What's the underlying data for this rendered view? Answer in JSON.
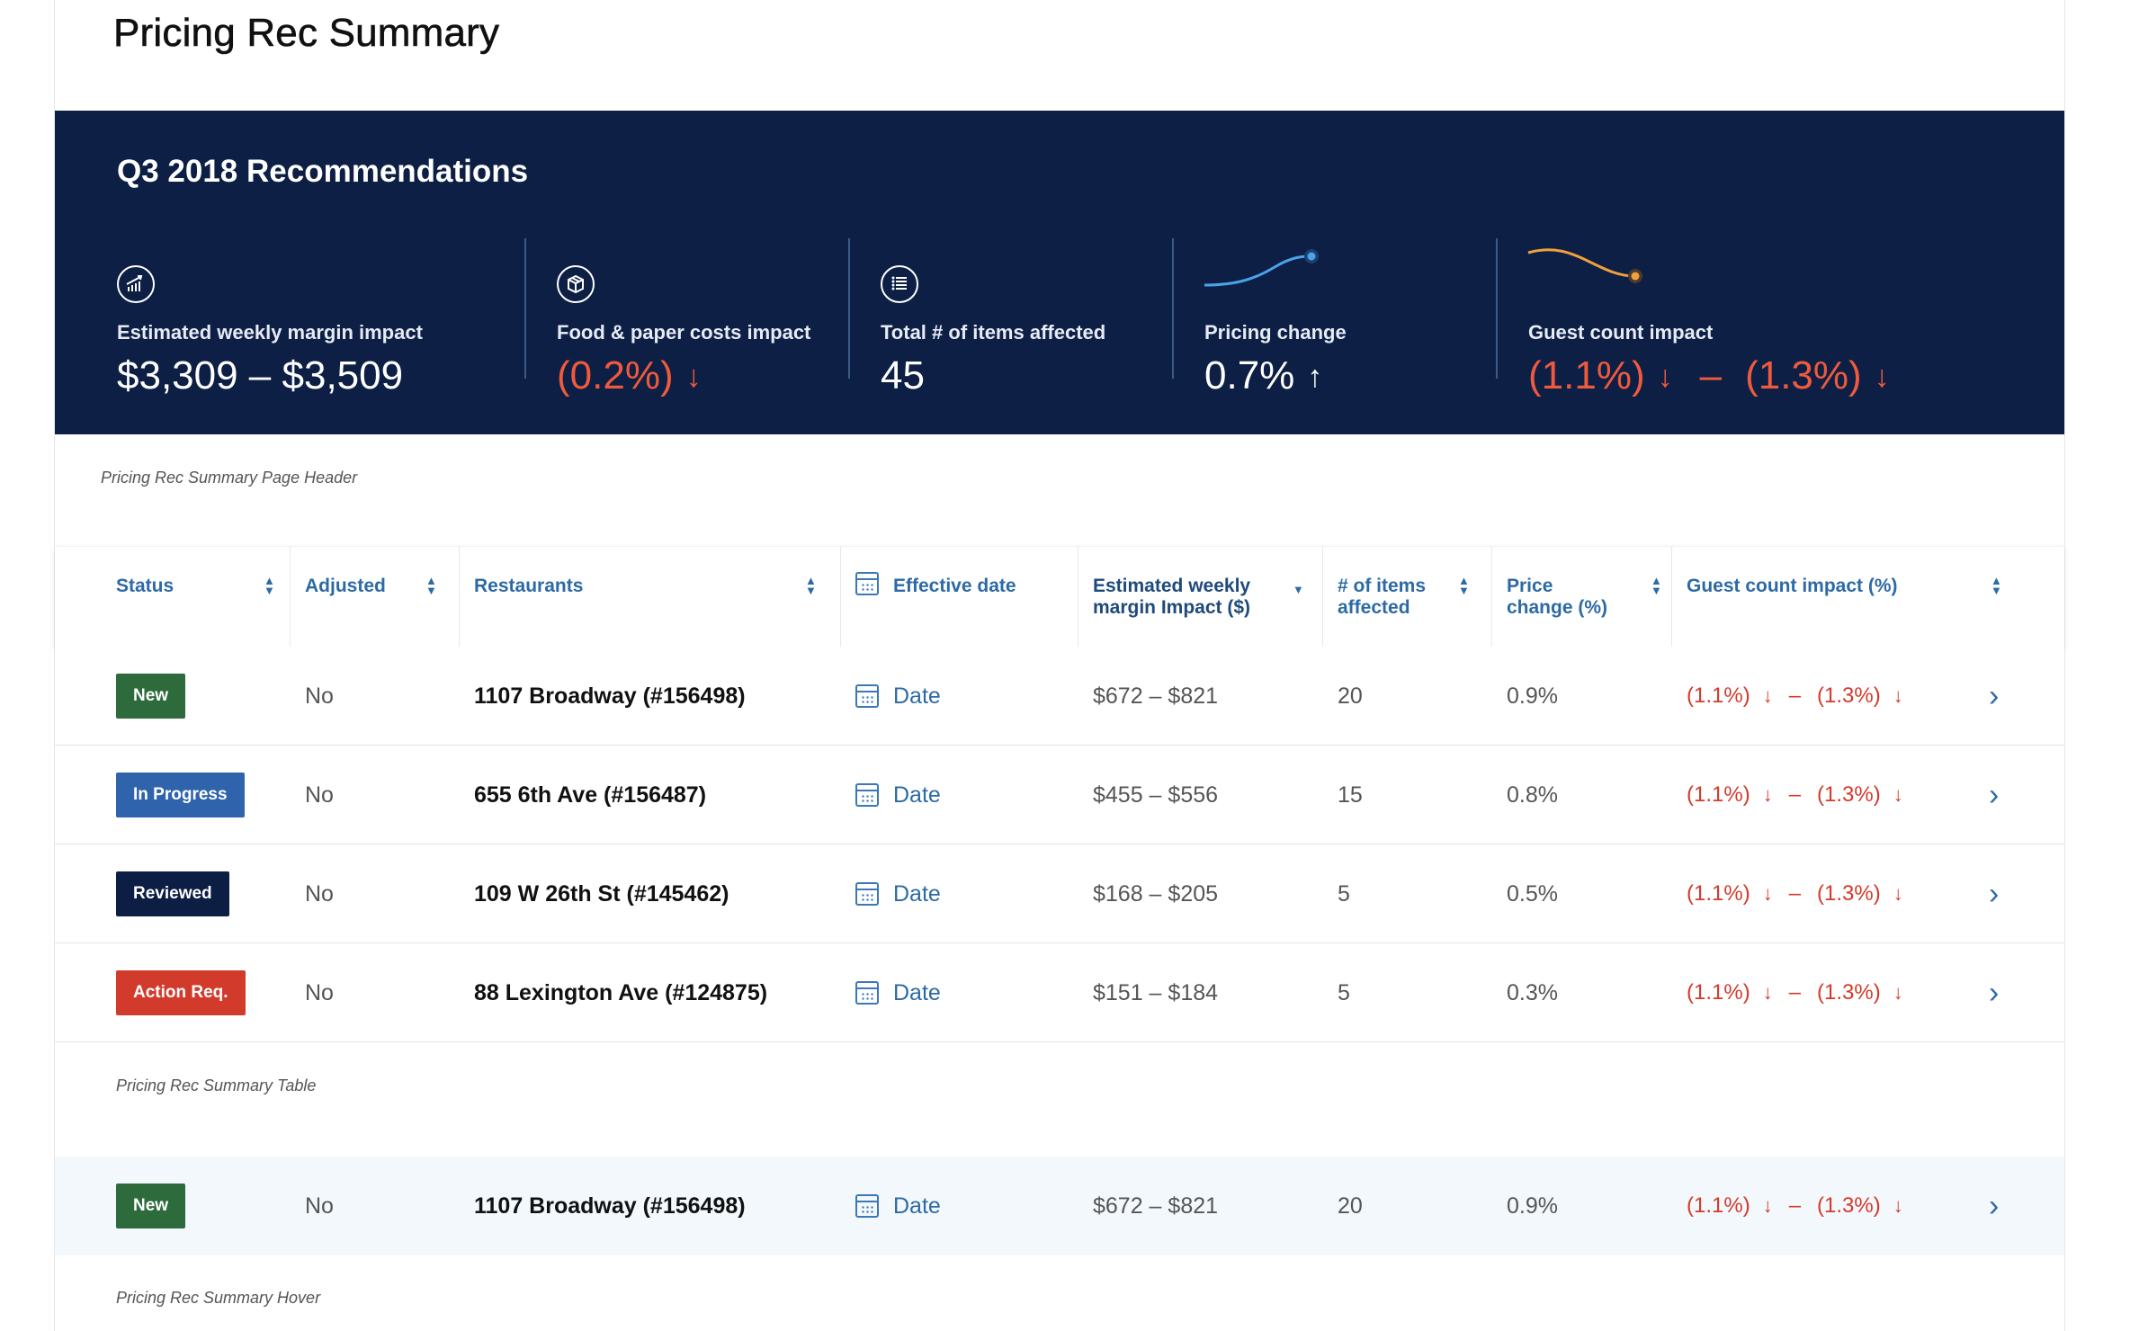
{
  "page": {
    "title": "Pricing Rec Summary"
  },
  "hero": {
    "title": "Q3 2018 Recommendations",
    "metrics": [
      {
        "label": "Estimated weekly margin impact",
        "value": "$3,309 – $3,509",
        "icon": "chart-growth-icon"
      },
      {
        "label": "Food & paper costs impact",
        "value": "(0.2%)",
        "arrow": "↓",
        "icon": "box-icon"
      },
      {
        "label": "Total # of items affected",
        "value": "45",
        "icon": "list-icon"
      },
      {
        "label": "Pricing change",
        "value": "0.7%",
        "arrow": "↑",
        "icon": "trend-up-sparkline"
      },
      {
        "label": "Guest count impact",
        "value_low": "(1.1%)",
        "value_high": "(1.3%)",
        "arrow": "↓",
        "dash": "–",
        "icon": "trend-down-sparkline"
      }
    ],
    "colors": {
      "background": "#0d1f45",
      "negative": "#f05a3c",
      "sparkline_up": "#4aa3e8",
      "sparkline_down": "#f0a03c"
    }
  },
  "captions": {
    "header": "Pricing Rec Summary Page Header",
    "table": "Pricing Rec Summary Table",
    "hover": "Pricing Rec Summary Hover"
  },
  "table": {
    "columns": [
      "Status",
      "Adjusted",
      "Restaurants",
      "Effective date",
      "Estimated weekly margin Impact ($)",
      "# of items affected",
      "Price change (%)",
      "Guest count impact (%)"
    ],
    "column_lines": {
      "margin_1": "Estimated weekly",
      "margin_2": "margin Impact ($)",
      "items_1": "# of items",
      "items_2": "affected",
      "price_1": "Price",
      "price_2": "change (%)"
    },
    "sorted_column": "Estimated weekly margin Impact ($)",
    "rows": [
      {
        "status": "New",
        "adjusted": "No",
        "restaurant": "1107 Broadway (#156498)",
        "date": "Date",
        "margin": "$672 – $821",
        "items": "20",
        "price": "0.9%",
        "gci_low": "(1.1%)",
        "gci_high": "(1.3%)"
      },
      {
        "status": "In Progress",
        "adjusted": "No",
        "restaurant": "655 6th Ave (#156487)",
        "date": "Date",
        "margin": "$455 – $556",
        "items": "15",
        "price": "0.8%",
        "gci_low": "(1.1%)",
        "gci_high": "(1.3%)"
      },
      {
        "status": "Reviewed",
        "adjusted": "No",
        "restaurant": "109 W 26th St (#145462)",
        "date": "Date",
        "margin": "$168 – $205",
        "items": "5",
        "price": "0.5%",
        "gci_low": "(1.1%)",
        "gci_high": "(1.3%)"
      },
      {
        "status": "Action Req.",
        "adjusted": "No",
        "restaurant": "88 Lexington Ave (#124875)",
        "date": "Date",
        "margin": "$151 – $184",
        "items": "5",
        "price": "0.3%",
        "gci_low": "(1.1%)",
        "gci_high": "(1.3%)"
      }
    ],
    "hover_row": {
      "status": "New",
      "adjusted": "No",
      "restaurant": "1107 Broadway (#156498)",
      "date": "Date",
      "margin": "$672 – $821",
      "items": "20",
      "price": "0.9%",
      "gci_low": "(1.1%)",
      "gci_high": "(1.3%)"
    },
    "arrow": "↓",
    "dash": "–",
    "chevron": "›",
    "status_colors": {
      "New": "#2e6b3c",
      "In Progress": "#2f64ad",
      "Reviewed": "#0c1e44",
      "Action Req.": "#d23b2c"
    }
  }
}
